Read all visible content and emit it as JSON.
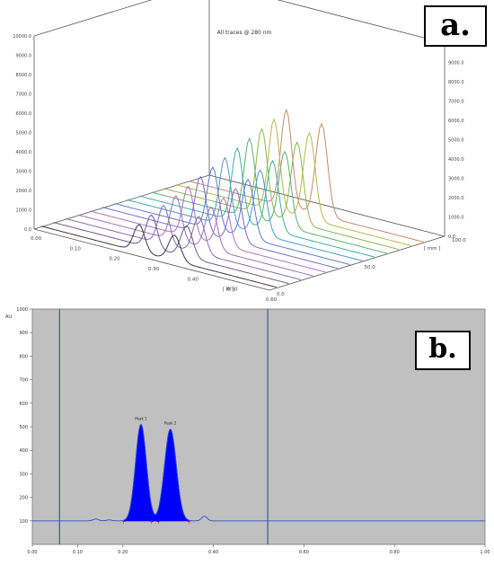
{
  "panel_a": {
    "label": "a.",
    "title": "All traces @ 280 nm"
  },
  "panel_b": {
    "label": "b."
  },
  "chart_data": [
    {
      "type": "line",
      "name": "3D overlay of chromatogram traces",
      "title": "All traces @ 280 nm",
      "z_ticks": [
        "0.0",
        "1000.0",
        "2000.0",
        "3000.0",
        "4000.0",
        "5000.0",
        "6000.0",
        "7000.0",
        "8000.0",
        "9000.0",
        "10000.0"
      ],
      "x_ticks": [
        "0.00",
        "0.10",
        "0.20",
        "0.30",
        "0.40",
        "0.50",
        "0.60"
      ],
      "x_unit": "[ Rf ]",
      "y_ticks": [
        "0.0",
        "50.0",
        "100.0"
      ],
      "y_unit": "[ mm ]",
      "zlim": [
        0,
        10000
      ],
      "series_count": 13,
      "peak_positions_rf": [
        0.25,
        0.34
      ],
      "peak_heights_first_to_last": [
        1400,
        1700,
        2000,
        2300,
        2600,
        2900,
        3200,
        3500,
        3800,
        4100,
        4400,
        4700,
        5000
      ],
      "series_colors": [
        "#3a3a3a",
        "#6c5a8a",
        "#8c6aa8",
        "#a070b8",
        "#b070c8",
        "#7a6ad0",
        "#5a7ad8",
        "#4a9acc",
        "#3ab0a8",
        "#5ab06a",
        "#8ab848",
        "#b8b848",
        "#c88a6a"
      ]
    },
    {
      "type": "area",
      "name": "Densitogram",
      "y_label": "AU",
      "ylim": [
        0,
        1000
      ],
      "xlim": [
        0,
        1
      ],
      "y_ticks": [
        "1000",
        "900",
        "800",
        "700",
        "600",
        "500",
        "400",
        "300",
        "200",
        "100"
      ],
      "x_ticks": [
        "0.00",
        "0.10",
        "0.20",
        "0.40",
        "0.60",
        "0.80",
        "1.00"
      ],
      "baseline": 100,
      "peaks": [
        {
          "label": "Peak 1",
          "rf": 0.24,
          "height": 510,
          "width": 0.012
        },
        {
          "label": "Peak 2",
          "rf": 0.305,
          "height": 490,
          "width": 0.013
        }
      ],
      "minor_peaks": [
        {
          "rf": 0.14,
          "height": 108
        },
        {
          "rf": 0.17,
          "height": 104
        },
        {
          "rf": 0.38,
          "height": 120
        }
      ],
      "vertical_markers": [
        0.06,
        0.52
      ],
      "colors": {
        "plot_bg": "#c0c0c0",
        "fill": "#0000ff",
        "baseline": "#3050c0",
        "marker_line": "#1a4a8a"
      }
    }
  ]
}
